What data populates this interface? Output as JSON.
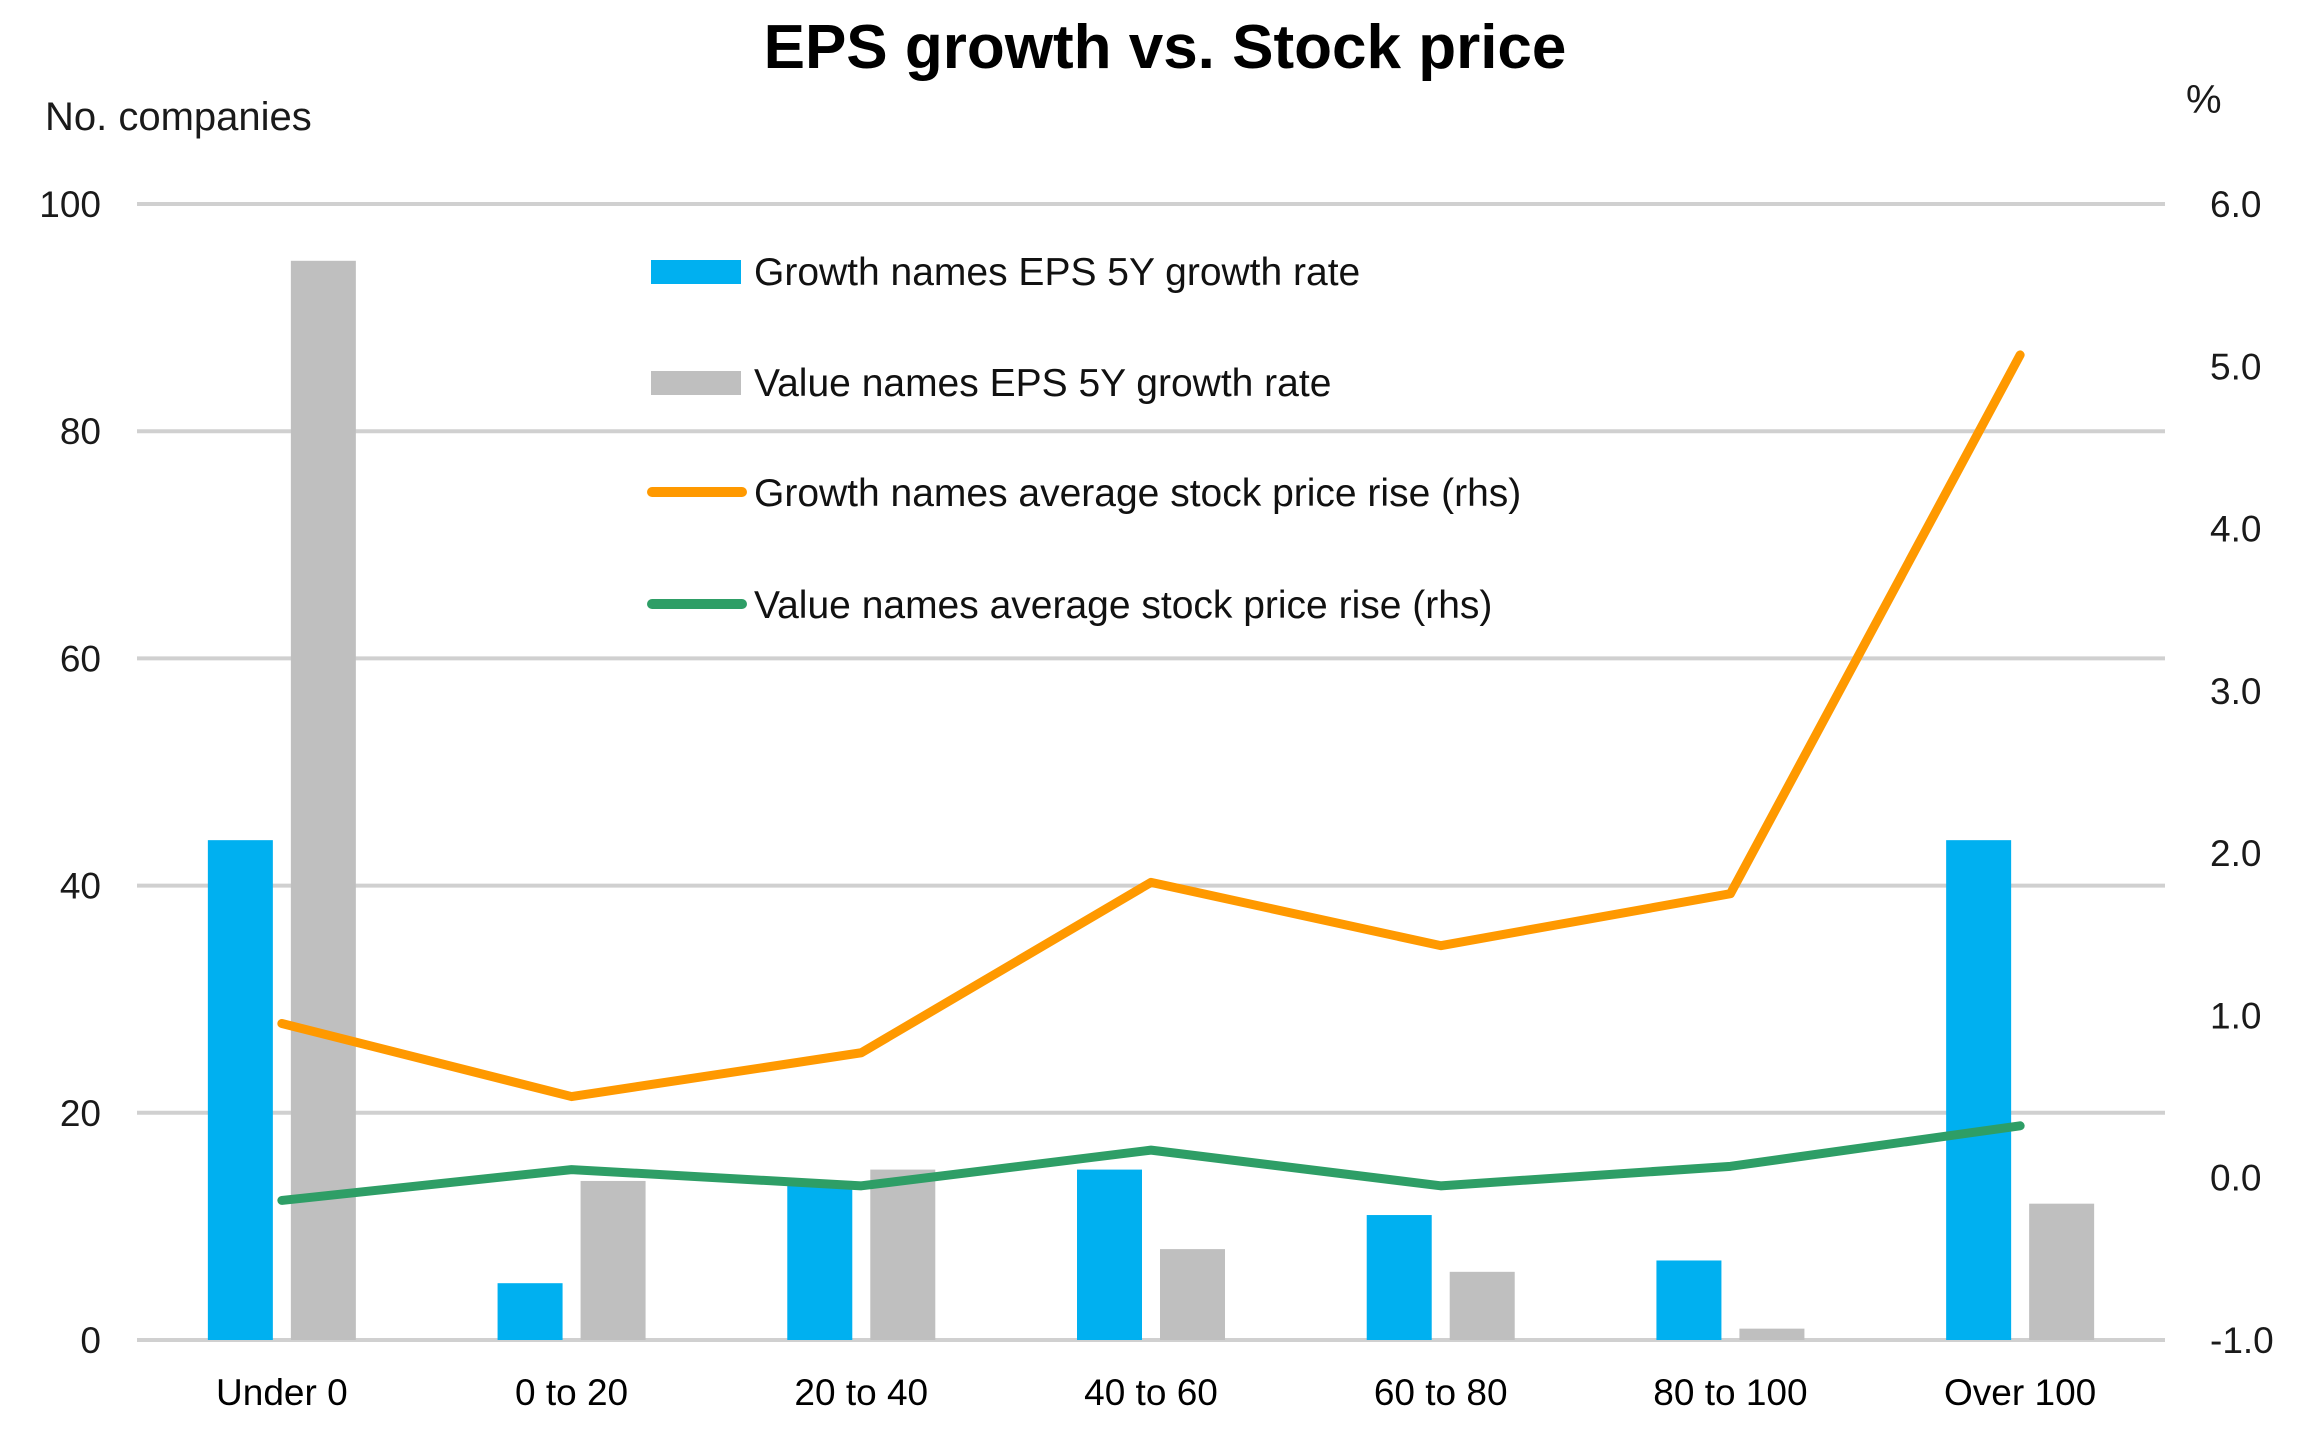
{
  "chart_data": {
    "type": "bar",
    "title": "EPS growth vs. Stock price",
    "ylabel": "No. companies",
    "y2label": "%",
    "xlabel": "",
    "categories": [
      "Under 0",
      "0 to 20",
      "20 to 40",
      "40 to 60",
      "60 to 80",
      "80 to 100",
      "Over 100"
    ],
    "ylim": [
      0,
      100
    ],
    "y2lim": [
      -1.0,
      6.0
    ],
    "yticks": [
      "0",
      "20",
      "40",
      "60",
      "80",
      "100"
    ],
    "y2ticks": [
      "-1.0",
      "0.0",
      "1.0",
      "2.0",
      "3.0",
      "4.0",
      "5.0",
      "6.0"
    ],
    "grid": true,
    "legend_position": "top-center",
    "series": [
      {
        "name": "Growth names EPS 5Y growth rate",
        "type": "bar",
        "axis": "left",
        "color": "#00B0F0",
        "values": [
          44,
          5,
          14,
          15,
          11,
          7,
          44
        ]
      },
      {
        "name": "Value names EPS 5Y growth rate",
        "type": "bar",
        "axis": "left",
        "color": "#BFBFBF",
        "values": [
          95,
          14,
          15,
          8,
          6,
          1,
          12
        ]
      },
      {
        "name": "Growth names average stock price rise (rhs)",
        "type": "line",
        "axis": "right",
        "color": "#FF9900",
        "values": [
          0.95,
          0.5,
          0.77,
          1.82,
          1.43,
          1.75,
          5.07
        ]
      },
      {
        "name": "Value names average stock price rise (rhs)",
        "type": "line",
        "axis": "right",
        "color": "#2E9E66",
        "values": [
          -0.14,
          0.05,
          -0.05,
          0.17,
          -0.05,
          0.07,
          0.32
        ]
      }
    ]
  }
}
